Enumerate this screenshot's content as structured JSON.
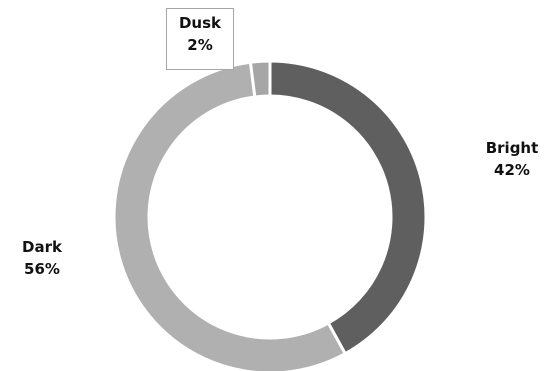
{
  "chart_data": {
    "type": "pie",
    "style": "donut",
    "slices": [
      {
        "label": "Bright",
        "value": 42,
        "display": "42%",
        "color": "#5f5f5f"
      },
      {
        "label": "Dark",
        "value": 56,
        "display": "56%",
        "color": "#b0b0b0"
      },
      {
        "label": "Dusk",
        "value": 2,
        "display": "2%",
        "color": "#a6a6a6"
      }
    ],
    "start": "12 o'clock",
    "direction": "clockwise",
    "legend": "none",
    "title": "",
    "separator_color": "#ffffff"
  }
}
